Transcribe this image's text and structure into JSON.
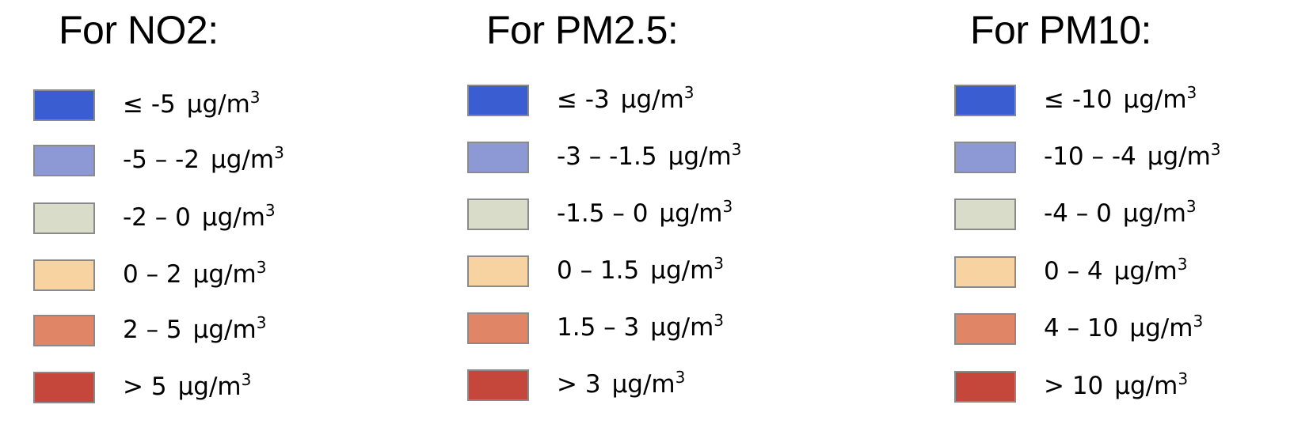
{
  "legends": [
    {
      "title": "For NO2:",
      "items": [
        {
          "range": "≤ -5",
          "unit": "µg/m",
          "exp": "3",
          "color": "#3a5ed1"
        },
        {
          "range": "-5 – -2",
          "unit": "µg/m",
          "exp": "3",
          "color": "#8d99d4"
        },
        {
          "range": "-2 – 0",
          "unit": "µg/m",
          "exp": "3",
          "color": "#d9dcc8"
        },
        {
          "range": "0 – 2",
          "unit": "µg/m",
          "exp": "3",
          "color": "#f6d3a0"
        },
        {
          "range": "2 – 5",
          "unit": "µg/m",
          "exp": "3",
          "color": "#e08566"
        },
        {
          "range": "> 5",
          "unit": "µg/m",
          "exp": "3",
          "color": "#c5463a"
        }
      ]
    },
    {
      "title": "For PM2.5:",
      "items": [
        {
          "range": "≤ -3",
          "unit": "µg/m",
          "exp": "3",
          "color": "#3a5ed1"
        },
        {
          "range": "-3 – -1.5",
          "unit": "µg/m",
          "exp": "3",
          "color": "#8d99d4"
        },
        {
          "range": "-1.5 – 0",
          "unit": "µg/m",
          "exp": "3",
          "color": "#d9dcc8"
        },
        {
          "range": "0 – 1.5",
          "unit": "µg/m",
          "exp": "3",
          "color": "#f6d3a0"
        },
        {
          "range": "1.5 – 3",
          "unit": "µg/m",
          "exp": "3",
          "color": "#e08566"
        },
        {
          "range": "> 3",
          "unit": "µg/m",
          "exp": "3",
          "color": "#c5463a"
        }
      ]
    },
    {
      "title": "For PM10:",
      "items": [
        {
          "range": "≤ -10",
          "unit": "µg/m",
          "exp": "3",
          "color": "#3a5ed1"
        },
        {
          "range": "-10 – -4",
          "unit": "µg/m",
          "exp": "3",
          "color": "#8d99d4"
        },
        {
          "range": "-4 – 0",
          "unit": "µg/m",
          "exp": "3",
          "color": "#d9dcc8"
        },
        {
          "range": "0 – 4",
          "unit": "µg/m",
          "exp": "3",
          "color": "#f6d3a0"
        },
        {
          "range": "4 – 10",
          "unit": "µg/m",
          "exp": "3",
          "color": "#e08566"
        },
        {
          "range": "> 10",
          "unit": "µg/m",
          "exp": "3",
          "color": "#c5463a"
        }
      ]
    }
  ]
}
